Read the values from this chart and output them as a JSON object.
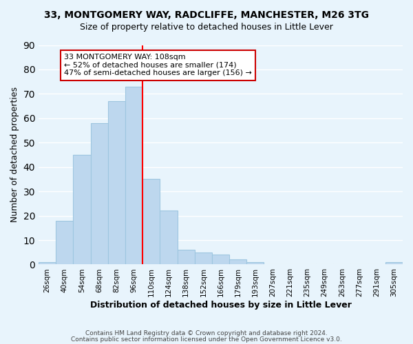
{
  "title": "33, MONTGOMERY WAY, RADCLIFFE, MANCHESTER, M26 3TG",
  "subtitle": "Size of property relative to detached houses in Little Lever",
  "xlabel": "Distribution of detached houses by size in Little Lever",
  "ylabel": "Number of detached properties",
  "bin_labels": [
    "26sqm",
    "40sqm",
    "54sqm",
    "68sqm",
    "82sqm",
    "96sqm",
    "110sqm",
    "124sqm",
    "138sqm",
    "152sqm",
    "166sqm",
    "179sqm",
    "193sqm",
    "207sqm",
    "221sqm",
    "235sqm",
    "249sqm",
    "263sqm",
    "277sqm",
    "291sqm",
    "305sqm"
  ],
  "bar_heights": [
    1,
    18,
    45,
    58,
    67,
    73,
    35,
    22,
    6,
    5,
    4,
    2,
    1,
    0,
    0,
    0,
    0,
    0,
    0,
    0,
    1
  ],
  "bar_color": "#bdd7ee",
  "bar_edge_color": "#9ec6e0",
  "vline_pos": 5.5,
  "vline_color": "red",
  "ylim": [
    0,
    90
  ],
  "yticks": [
    0,
    10,
    20,
    30,
    40,
    50,
    60,
    70,
    80,
    90
  ],
  "annotation_title": "33 MONTGOMERY WAY: 108sqm",
  "annotation_line1": "← 52% of detached houses are smaller (174)",
  "annotation_line2": "47% of semi-detached houses are larger (156) →",
  "annotation_box_color": "white",
  "annotation_box_edge": "#cc0000",
  "footer1": "Contains HM Land Registry data © Crown copyright and database right 2024.",
  "footer2": "Contains public sector information licensed under the Open Government Licence v3.0.",
  "background_color": "#e8f4fc",
  "grid_color": "white"
}
